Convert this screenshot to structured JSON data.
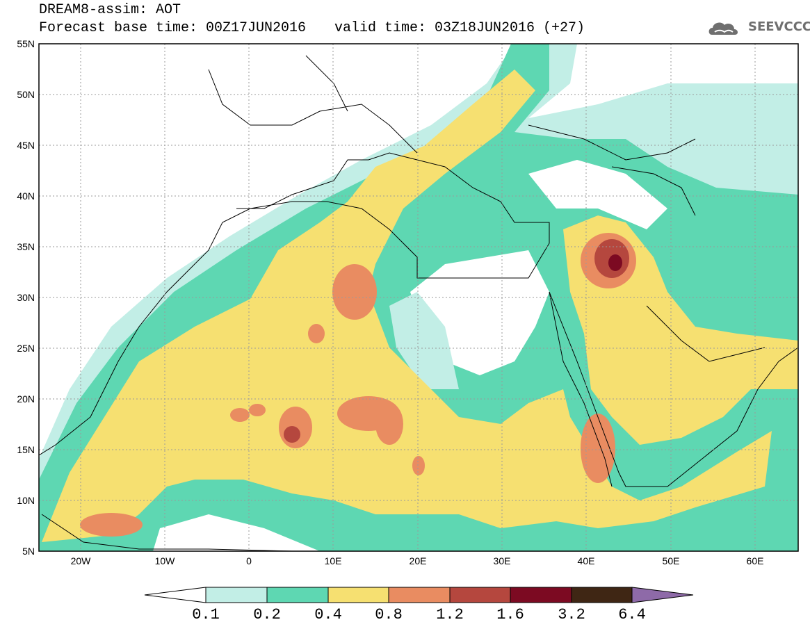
{
  "header": {
    "title_line1": "DREAM8-assim: AOT",
    "title_line2": "Forecast base time: 00Z17JUN2016",
    "valid_time": "valid time: 03Z18JUN2016 (+27)",
    "logo_text": "SEEVCCC",
    "logo_icon": "cloud-icon"
  },
  "map": {
    "lon_range": [
      -25,
      65
    ],
    "lat_range": [
      5,
      55
    ],
    "x_tick_labels": [
      "20W",
      "10W",
      "0",
      "10E",
      "20E",
      "30E",
      "40E",
      "50E",
      "60E"
    ],
    "y_tick_labels": [
      "55N",
      "50N",
      "45N",
      "40N",
      "35N",
      "30N",
      "25N",
      "20N",
      "15N",
      "10N",
      "5N"
    ],
    "gridlines": true,
    "variable": "AOT"
  },
  "colorbar": {
    "levels": [
      "0.1",
      "0.2",
      "0.4",
      "0.8",
      "1.2",
      "1.6",
      "3.2",
      "6.4"
    ],
    "colors": [
      "#ffffff",
      "#c2eee6",
      "#5ed7b2",
      "#f6e071",
      "#e98c61",
      "#b5473e",
      "#7c0a22",
      "#3f2614",
      "#8e6aa8"
    ]
  },
  "colors": {
    "c1": "#c2eee6",
    "c2": "#5ed7b2",
    "c3": "#f6e071",
    "c4": "#e98c61",
    "c5": "#b5473e",
    "c6": "#7c0a22"
  }
}
